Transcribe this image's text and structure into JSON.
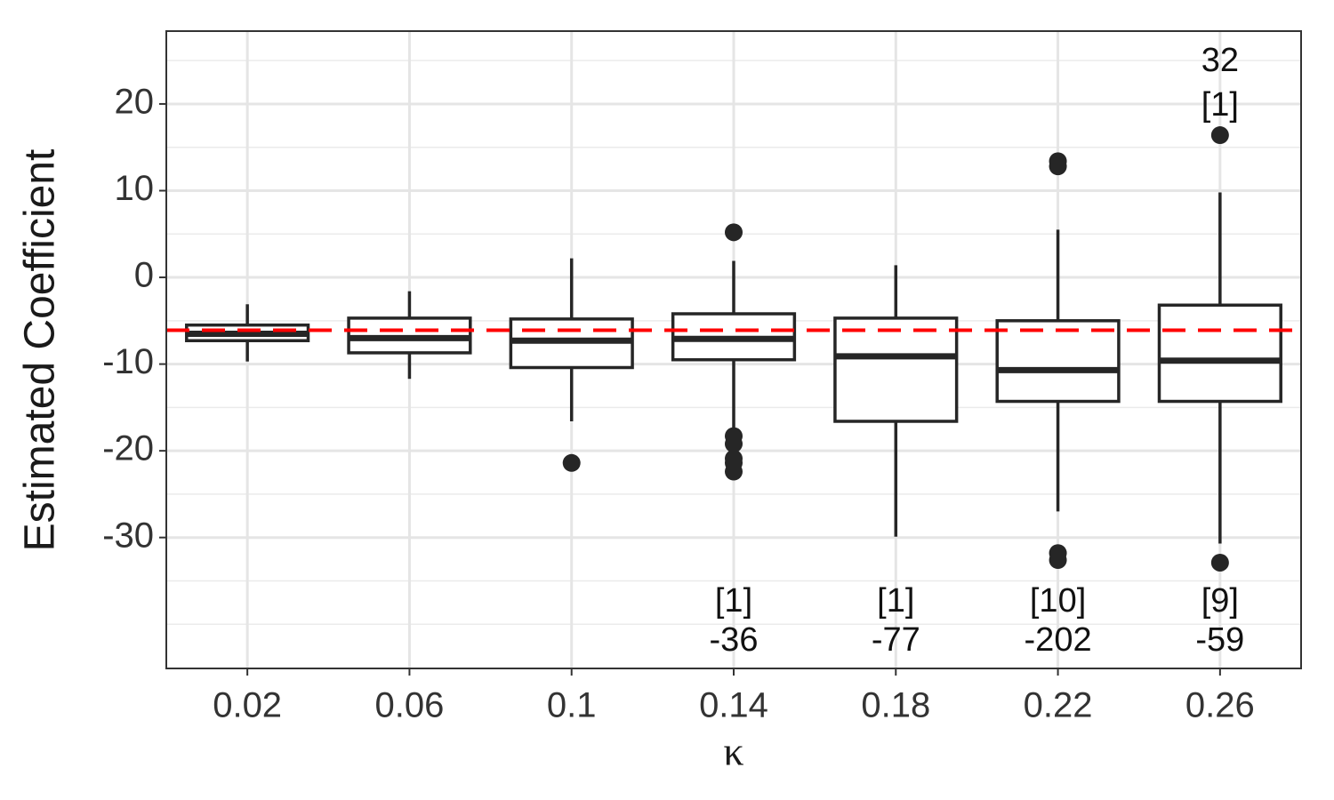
{
  "chart_data": {
    "type": "box",
    "x_label": "κ",
    "y_label": "Estimated Coefficient",
    "categories": [
      "0.02",
      "0.06",
      "0.1",
      "0.14",
      "0.18",
      "0.22",
      "0.26"
    ],
    "boxes": [
      {
        "whisker_low": -9.7,
        "q1": -7.3,
        "median": -6.5,
        "q3": -5.5,
        "whisker_high": -3.1,
        "outliers": []
      },
      {
        "whisker_low": -11.7,
        "q1": -8.7,
        "median": -7.0,
        "q3": -4.7,
        "whisker_high": -1.6,
        "outliers": []
      },
      {
        "whisker_low": -16.6,
        "q1": -10.4,
        "median": -7.3,
        "q3": -4.8,
        "whisker_high": 2.2,
        "outliers": [
          -21.4
        ]
      },
      {
        "whisker_low": -17.9,
        "q1": -9.5,
        "median": -7.1,
        "q3": -4.2,
        "whisker_high": 1.9,
        "outliers": [
          5.2,
          -18.3,
          -19.2,
          -20.9,
          -21.4,
          -22.4
        ]
      },
      {
        "whisker_low": -29.9,
        "q1": -16.6,
        "median": -9.1,
        "q3": -4.7,
        "whisker_high": 1.4,
        "outliers": []
      },
      {
        "whisker_low": -27.0,
        "q1": -14.3,
        "median": -10.7,
        "q3": -5.0,
        "whisker_high": 5.5,
        "outliers": [
          13.4,
          12.8,
          -31.8,
          -32.6
        ]
      },
      {
        "whisker_low": -30.7,
        "q1": -14.3,
        "median": -9.6,
        "q3": -3.2,
        "whisker_high": 9.8,
        "outliers": [
          16.4,
          -32.9
        ]
      }
    ],
    "box_color": "#262626",
    "reference_line": {
      "value": -6.1,
      "color": "#ff0000",
      "dashed": true
    },
    "annotations": [
      {
        "category": "0.26",
        "side": "top",
        "lines": [
          "32",
          "[1]"
        ]
      },
      {
        "category": "0.14",
        "side": "bottom",
        "lines": [
          "[1]",
          "-36"
        ]
      },
      {
        "category": "0.18",
        "side": "bottom",
        "lines": [
          "[1]",
          "-77"
        ]
      },
      {
        "category": "0.22",
        "side": "bottom",
        "lines": [
          "[10]",
          "-202"
        ]
      },
      {
        "category": "0.26",
        "side": "bottom",
        "lines": [
          "[9]",
          "-59"
        ]
      }
    ],
    "ylim": [
      -45.1,
      28.4
    ],
    "yticks": [
      -30,
      -20,
      -10,
      0,
      10,
      20
    ],
    "minor_yticks": [
      -40,
      -35,
      -25,
      -15,
      -5,
      5,
      15,
      25
    ],
    "grid": true
  }
}
